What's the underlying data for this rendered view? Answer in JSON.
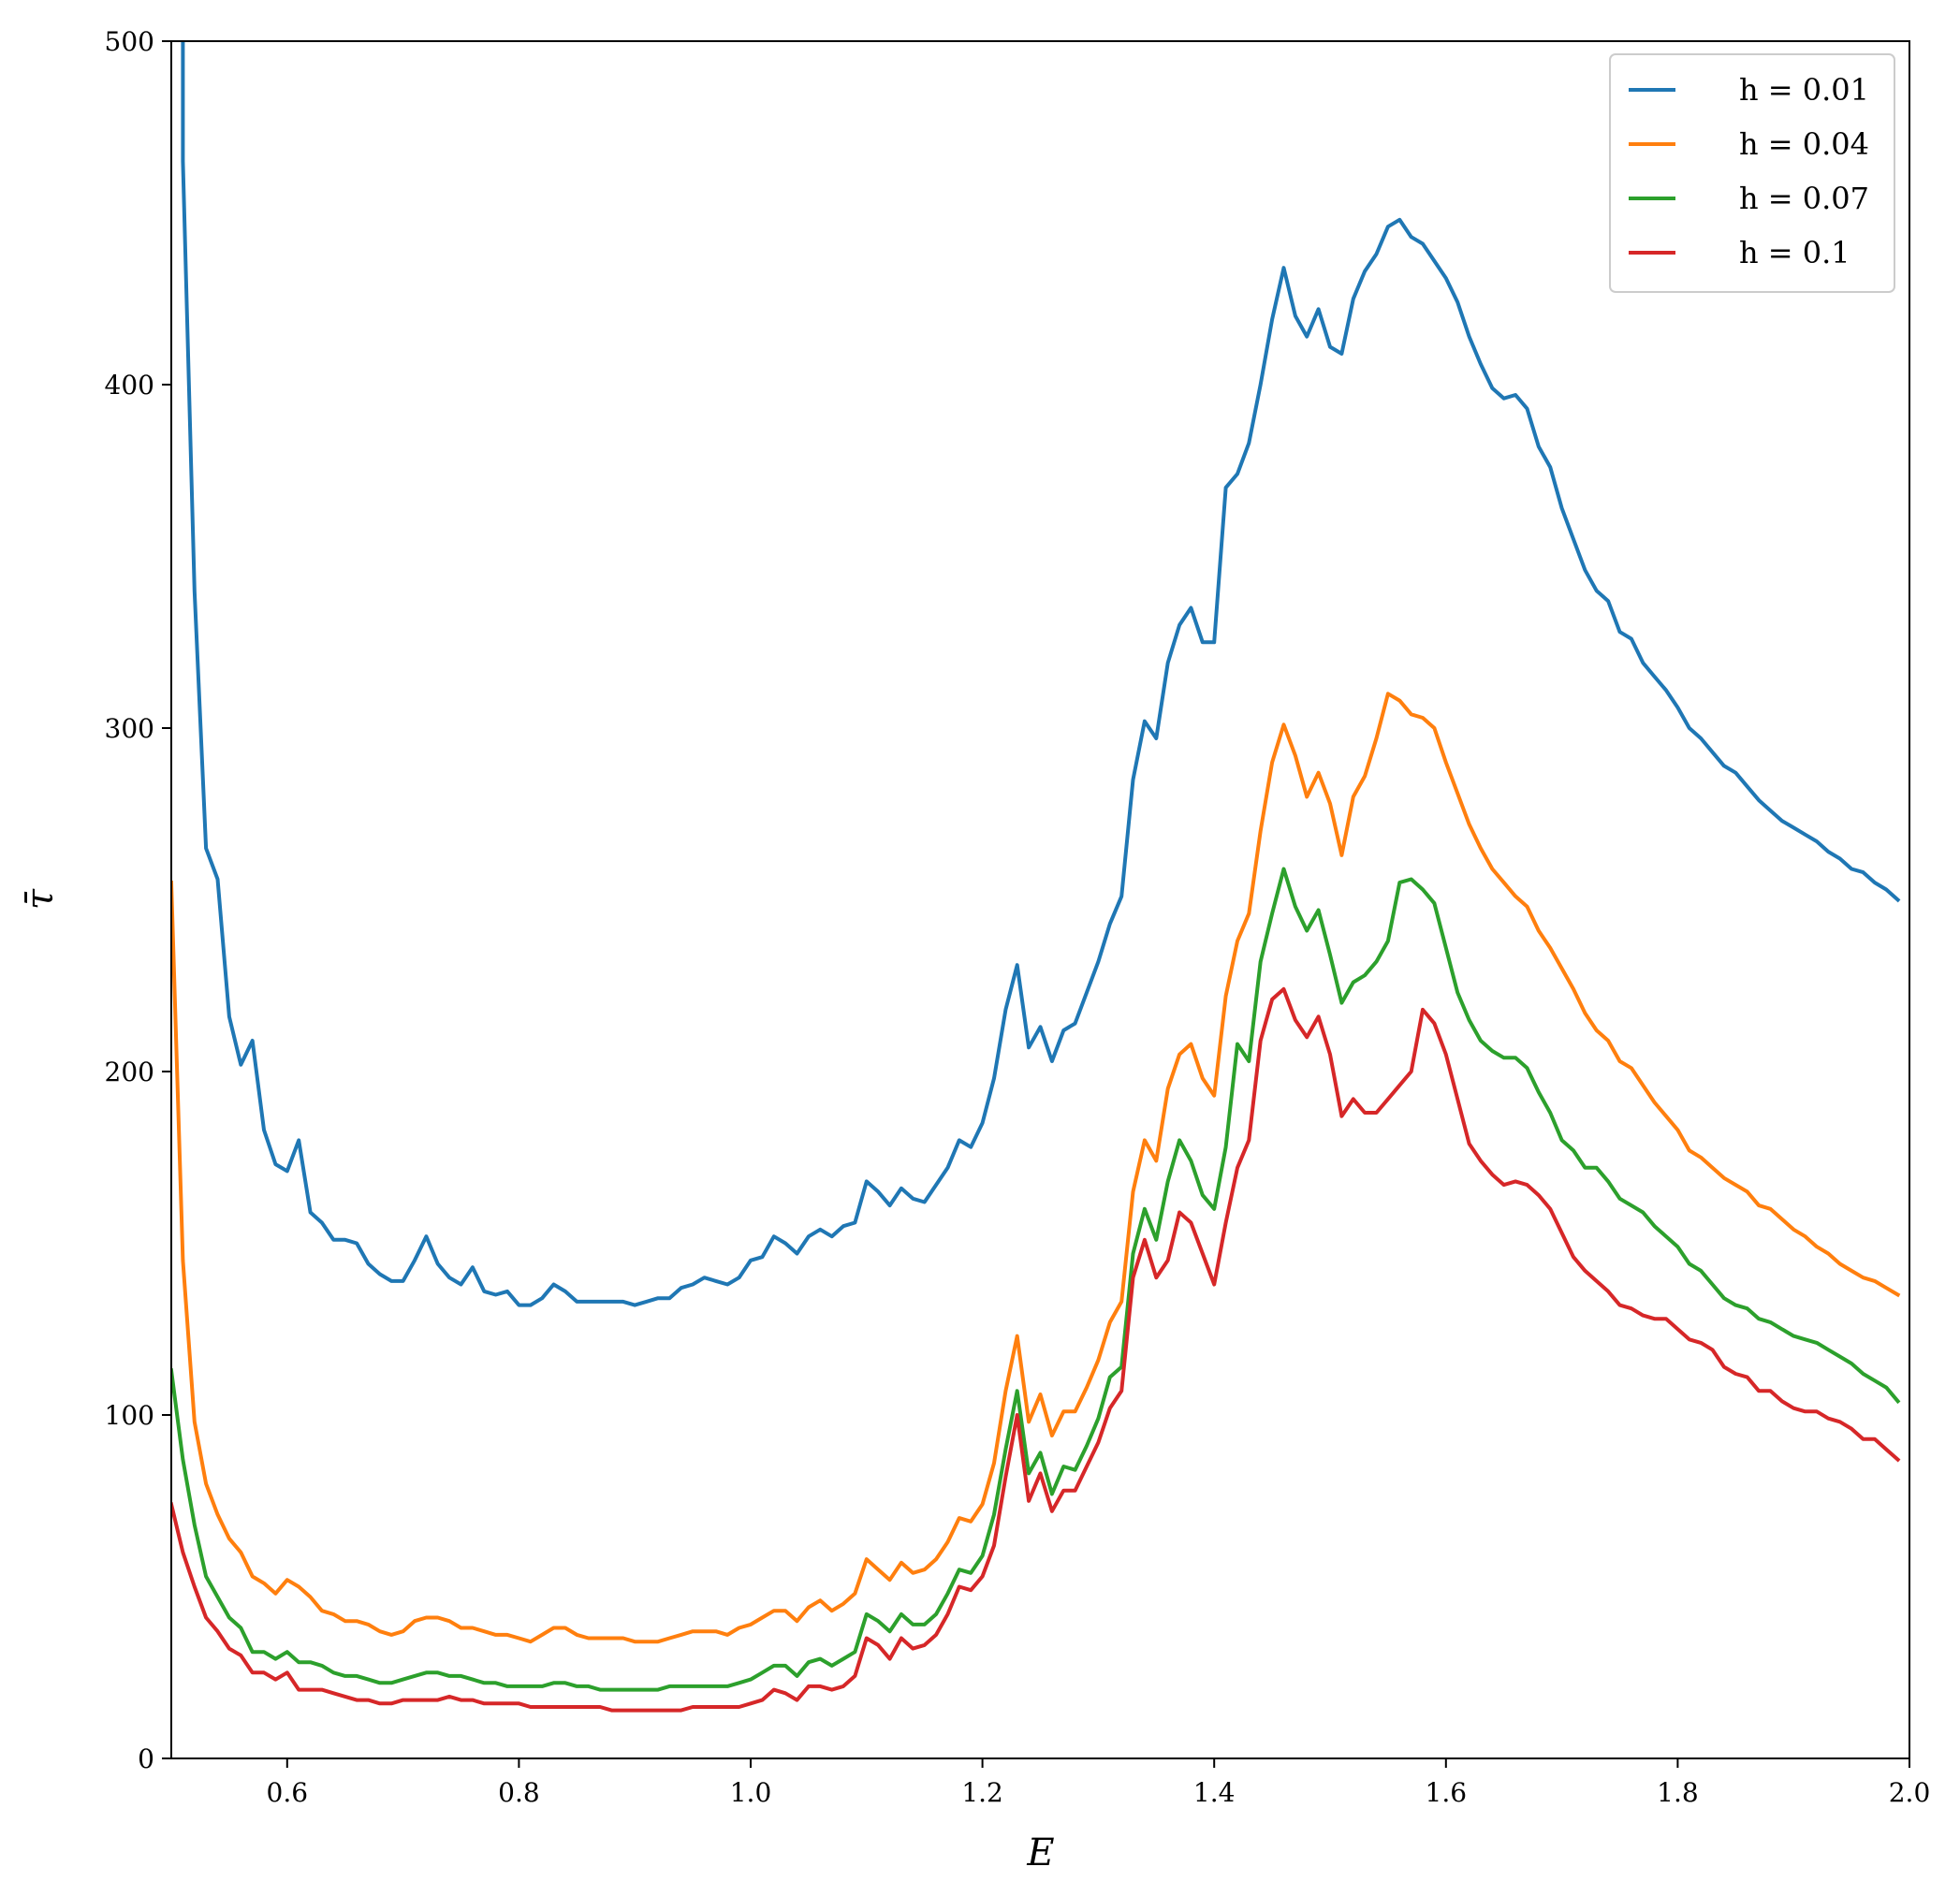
{
  "chart_data": {
    "type": "line",
    "xlabel": "E",
    "ylabel": "τ̄",
    "xlim": [
      0.5,
      2.0
    ],
    "ylim": [
      0,
      500
    ],
    "x_ticks": [
      0.6,
      0.8,
      1.0,
      1.2,
      1.4,
      1.6,
      1.8,
      2.0
    ],
    "x_tick_labels": [
      "0.6",
      "0.8",
      "1.0",
      "1.2",
      "1.4",
      "1.6",
      "1.8",
      "2.0"
    ],
    "y_ticks": [
      0,
      100,
      200,
      300,
      400,
      500
    ],
    "y_tick_labels": [
      "0",
      "100",
      "200",
      "300",
      "400",
      "500"
    ],
    "grid": false,
    "legend_position": "top-right",
    "x": [
      0.5,
      0.51,
      0.52,
      0.53,
      0.54,
      0.55,
      0.56,
      0.57,
      0.58,
      0.59,
      0.6,
      0.61,
      0.62,
      0.63,
      0.64,
      0.65,
      0.66,
      0.67,
      0.68,
      0.69,
      0.7,
      0.71,
      0.72,
      0.73,
      0.74,
      0.75,
      0.76,
      0.77,
      0.78,
      0.79,
      0.8,
      0.81,
      0.82,
      0.83,
      0.84,
      0.85,
      0.86,
      0.87,
      0.88,
      0.89,
      0.9,
      0.91,
      0.92,
      0.93,
      0.94,
      0.95,
      0.96,
      0.97,
      0.98,
      0.99,
      1.0,
      1.01,
      1.02,
      1.03,
      1.04,
      1.05,
      1.06,
      1.07,
      1.08,
      1.09,
      1.1,
      1.11,
      1.12,
      1.13,
      1.14,
      1.15,
      1.16,
      1.17,
      1.18,
      1.19,
      1.2,
      1.21,
      1.22,
      1.23,
      1.24,
      1.25,
      1.26,
      1.27,
      1.28,
      1.29,
      1.3,
      1.31,
      1.32,
      1.33,
      1.34,
      1.35,
      1.36,
      1.37,
      1.38,
      1.39,
      1.4,
      1.41,
      1.42,
      1.43,
      1.44,
      1.45,
      1.46,
      1.47,
      1.48,
      1.49,
      1.5,
      1.51,
      1.52,
      1.53,
      1.54,
      1.55,
      1.56,
      1.57,
      1.58,
      1.59,
      1.6,
      1.61,
      1.62,
      1.63,
      1.64,
      1.65,
      1.66,
      1.67,
      1.68,
      1.69,
      1.7,
      1.71,
      1.72,
      1.73,
      1.74,
      1.75,
      1.76,
      1.77,
      1.78,
      1.79,
      1.8,
      1.81,
      1.82,
      1.83,
      1.84,
      1.85,
      1.86,
      1.87,
      1.88,
      1.89,
      1.9,
      1.91,
      1.92,
      1.93,
      1.94,
      1.95,
      1.96,
      1.97,
      1.98,
      1.99
    ],
    "series": [
      {
        "name": "h = 0.01",
        "color": "#1f77b4",
        "values": [
          null,
          465,
          340,
          265,
          256,
          216,
          202,
          209,
          183,
          173,
          171,
          180,
          159,
          156,
          151,
          151,
          150,
          144,
          141,
          139,
          139,
          145,
          152,
          144,
          140,
          138,
          143,
          136,
          135,
          136,
          132,
          132,
          134,
          138,
          136,
          133,
          133,
          133,
          133,
          133,
          132,
          133,
          134,
          134,
          137,
          138,
          140,
          139,
          138,
          140,
          145,
          146,
          152,
          150,
          147,
          152,
          154,
          152,
          155,
          156,
          168,
          165,
          161,
          166,
          163,
          162,
          167,
          172,
          180,
          178,
          185,
          198,
          218,
          231,
          207,
          213,
          203,
          212,
          214,
          223,
          232,
          243,
          251,
          285,
          302,
          297,
          319,
          330,
          335,
          325,
          325,
          370,
          374,
          383,
          400,
          419,
          434,
          420,
          414,
          422,
          411,
          409,
          425,
          433,
          438,
          446,
          448,
          443,
          441,
          436,
          431,
          424,
          414,
          406,
          399,
          396,
          397,
          393,
          382,
          376,
          364,
          355,
          346,
          340,
          337,
          328,
          326,
          319,
          315,
          311,
          306,
          300,
          297,
          293,
          289,
          287,
          283,
          279,
          276,
          273,
          271,
          269,
          267,
          264,
          262,
          259,
          258,
          255,
          253,
          250
        ]
      },
      {
        "name": "h = 0.04",
        "color": "#ff7f0e",
        "values": [
          255,
          145,
          98,
          80,
          71,
          64,
          60,
          53,
          51,
          48,
          52,
          50,
          47,
          43,
          42,
          40,
          40,
          39,
          37,
          36,
          37,
          40,
          41,
          41,
          40,
          38,
          38,
          37,
          36,
          36,
          35,
          34,
          36,
          38,
          38,
          36,
          35,
          35,
          35,
          35,
          34,
          34,
          34,
          35,
          36,
          37,
          37,
          37,
          36,
          38,
          39,
          41,
          43,
          43,
          40,
          44,
          46,
          43,
          45,
          48,
          58,
          55,
          52,
          57,
          54,
          55,
          58,
          63,
          70,
          69,
          74,
          86,
          107,
          123,
          98,
          106,
          94,
          101,
          101,
          108,
          116,
          127,
          133,
          165,
          180,
          174,
          195,
          205,
          208,
          198,
          193,
          222,
          238,
          246,
          270,
          290,
          301,
          292,
          280,
          287,
          278,
          263,
          280,
          286,
          297,
          310,
          308,
          304,
          303,
          300,
          290,
          281,
          272,
          265,
          259,
          255,
          251,
          248,
          241,
          236,
          230,
          224,
          217,
          212,
          209,
          203,
          201,
          196,
          191,
          187,
          183,
          177,
          175,
          172,
          169,
          167,
          165,
          161,
          160,
          157,
          154,
          152,
          149,
          147,
          144,
          142,
          140,
          139,
          137,
          135
        ]
      },
      {
        "name": "h = 0.07",
        "color": "#2ca02c",
        "values": [
          113,
          87,
          68,
          53,
          47,
          41,
          38,
          31,
          31,
          29,
          31,
          28,
          28,
          27,
          25,
          24,
          24,
          23,
          22,
          22,
          23,
          24,
          25,
          25,
          24,
          24,
          23,
          22,
          22,
          21,
          21,
          21,
          21,
          22,
          22,
          21,
          21,
          20,
          20,
          20,
          20,
          20,
          20,
          21,
          21,
          21,
          21,
          21,
          21,
          22,
          23,
          25,
          27,
          27,
          24,
          28,
          29,
          27,
          29,
          31,
          42,
          40,
          37,
          42,
          39,
          39,
          42,
          48,
          55,
          54,
          59,
          71,
          90,
          107,
          83,
          89,
          77,
          85,
          84,
          91,
          99,
          111,
          114,
          147,
          160,
          151,
          168,
          180,
          174,
          164,
          160,
          178,
          208,
          203,
          232,
          246,
          259,
          248,
          241,
          247,
          234,
          220,
          226,
          228,
          232,
          238,
          255,
          256,
          253,
          249,
          236,
          223,
          215,
          209,
          206,
          204,
          204,
          201,
          194,
          188,
          180,
          177,
          172,
          172,
          168,
          163,
          161,
          159,
          155,
          152,
          149,
          144,
          142,
          138,
          134,
          132,
          131,
          128,
          127,
          125,
          123,
          122,
          121,
          119,
          117,
          115,
          112,
          110,
          108,
          104
        ]
      },
      {
        "name": "h = 0.1",
        "color": "#d62728",
        "values": [
          74,
          60,
          50,
          41,
          37,
          32,
          30,
          25,
          25,
          23,
          25,
          20,
          20,
          20,
          19,
          18,
          17,
          17,
          16,
          16,
          17,
          17,
          17,
          17,
          18,
          17,
          17,
          16,
          16,
          16,
          16,
          15,
          15,
          15,
          15,
          15,
          15,
          15,
          14,
          14,
          14,
          14,
          14,
          14,
          14,
          15,
          15,
          15,
          15,
          15,
          16,
          17,
          20,
          19,
          17,
          21,
          21,
          20,
          21,
          24,
          35,
          33,
          29,
          35,
          32,
          33,
          36,
          42,
          50,
          49,
          53,
          62,
          82,
          100,
          75,
          83,
          72,
          78,
          78,
          85,
          92,
          102,
          107,
          140,
          151,
          140,
          145,
          159,
          156,
          147,
          138,
          156,
          172,
          180,
          209,
          221,
          224,
          215,
          210,
          216,
          205,
          187,
          192,
          188,
          188,
          192,
          196,
          200,
          218,
          214,
          205,
          192,
          179,
          174,
          170,
          167,
          168,
          167,
          164,
          160,
          153,
          146,
          142,
          139,
          136,
          132,
          131,
          129,
          128,
          128,
          125,
          122,
          121,
          119,
          114,
          112,
          111,
          107,
          107,
          104,
          102,
          101,
          101,
          99,
          98,
          96,
          93,
          93,
          90,
          87
        ]
      }
    ]
  }
}
